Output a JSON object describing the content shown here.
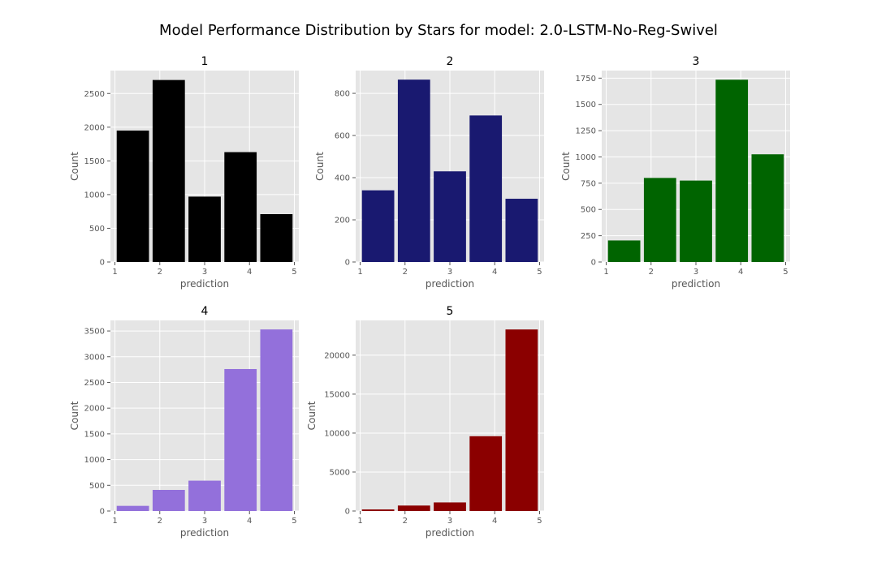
{
  "figure": {
    "title": "Model Performance Distribution by Stars for model: 2.0-LSTM-No-Reg-Swivel"
  },
  "chart_data": [
    {
      "type": "bar",
      "title": "1",
      "xlabel": "prediction",
      "ylabel": "Count",
      "color": "#000000",
      "x": [
        1,
        2,
        3,
        4,
        5
      ],
      "values": [
        1950,
        2700,
        970,
        1630,
        710
      ],
      "xlim": [
        0.9,
        5.1
      ],
      "ylim": [
        0,
        2840
      ],
      "xticks": [
        1,
        2,
        3,
        4,
        5
      ],
      "yticks": [
        0,
        500,
        1000,
        1500,
        2000,
        2500
      ],
      "grid": true
    },
    {
      "type": "bar",
      "title": "2",
      "xlabel": "prediction",
      "ylabel": "Count",
      "color": "#191970",
      "x": [
        1,
        2,
        3,
        4,
        5
      ],
      "values": [
        340,
        865,
        430,
        695,
        300
      ],
      "xlim": [
        0.9,
        5.1
      ],
      "ylim": [
        0,
        908
      ],
      "xticks": [
        1,
        2,
        3,
        4,
        5
      ],
      "yticks": [
        0,
        200,
        400,
        600,
        800
      ],
      "grid": true
    },
    {
      "type": "bar",
      "title": "3",
      "xlabel": "prediction",
      "ylabel": "Count",
      "color": "#006400",
      "x": [
        1,
        2,
        3,
        4,
        5
      ],
      "values": [
        205,
        800,
        775,
        1735,
        1025
      ],
      "xlim": [
        0.9,
        5.1
      ],
      "ylim": [
        0,
        1822
      ],
      "xticks": [
        1,
        2,
        3,
        4,
        5
      ],
      "yticks": [
        0,
        250,
        500,
        750,
        1000,
        1250,
        1500,
        1750
      ],
      "grid": true
    },
    {
      "type": "bar",
      "title": "4",
      "xlabel": "prediction",
      "ylabel": "Count",
      "color": "#9370db",
      "x": [
        1,
        2,
        3,
        4,
        5
      ],
      "values": [
        100,
        410,
        590,
        2760,
        3530
      ],
      "xlim": [
        0.9,
        5.1
      ],
      "ylim": [
        0,
        3706
      ],
      "xticks": [
        1,
        2,
        3,
        4,
        5
      ],
      "yticks": [
        0,
        500,
        1000,
        1500,
        2000,
        2500,
        3000,
        3500
      ],
      "grid": true
    },
    {
      "type": "bar",
      "title": "5",
      "xlabel": "prediction",
      "ylabel": "Count",
      "color": "#8b0000",
      "x": [
        1,
        2,
        3,
        4,
        5
      ],
      "values": [
        200,
        700,
        1100,
        9600,
        23300
      ],
      "xlim": [
        0.9,
        5.1
      ],
      "ylim": [
        0,
        24465
      ],
      "xticks": [
        1,
        2,
        3,
        4,
        5
      ],
      "yticks": [
        0,
        5000,
        10000,
        15000,
        20000
      ],
      "grid": true
    }
  ]
}
